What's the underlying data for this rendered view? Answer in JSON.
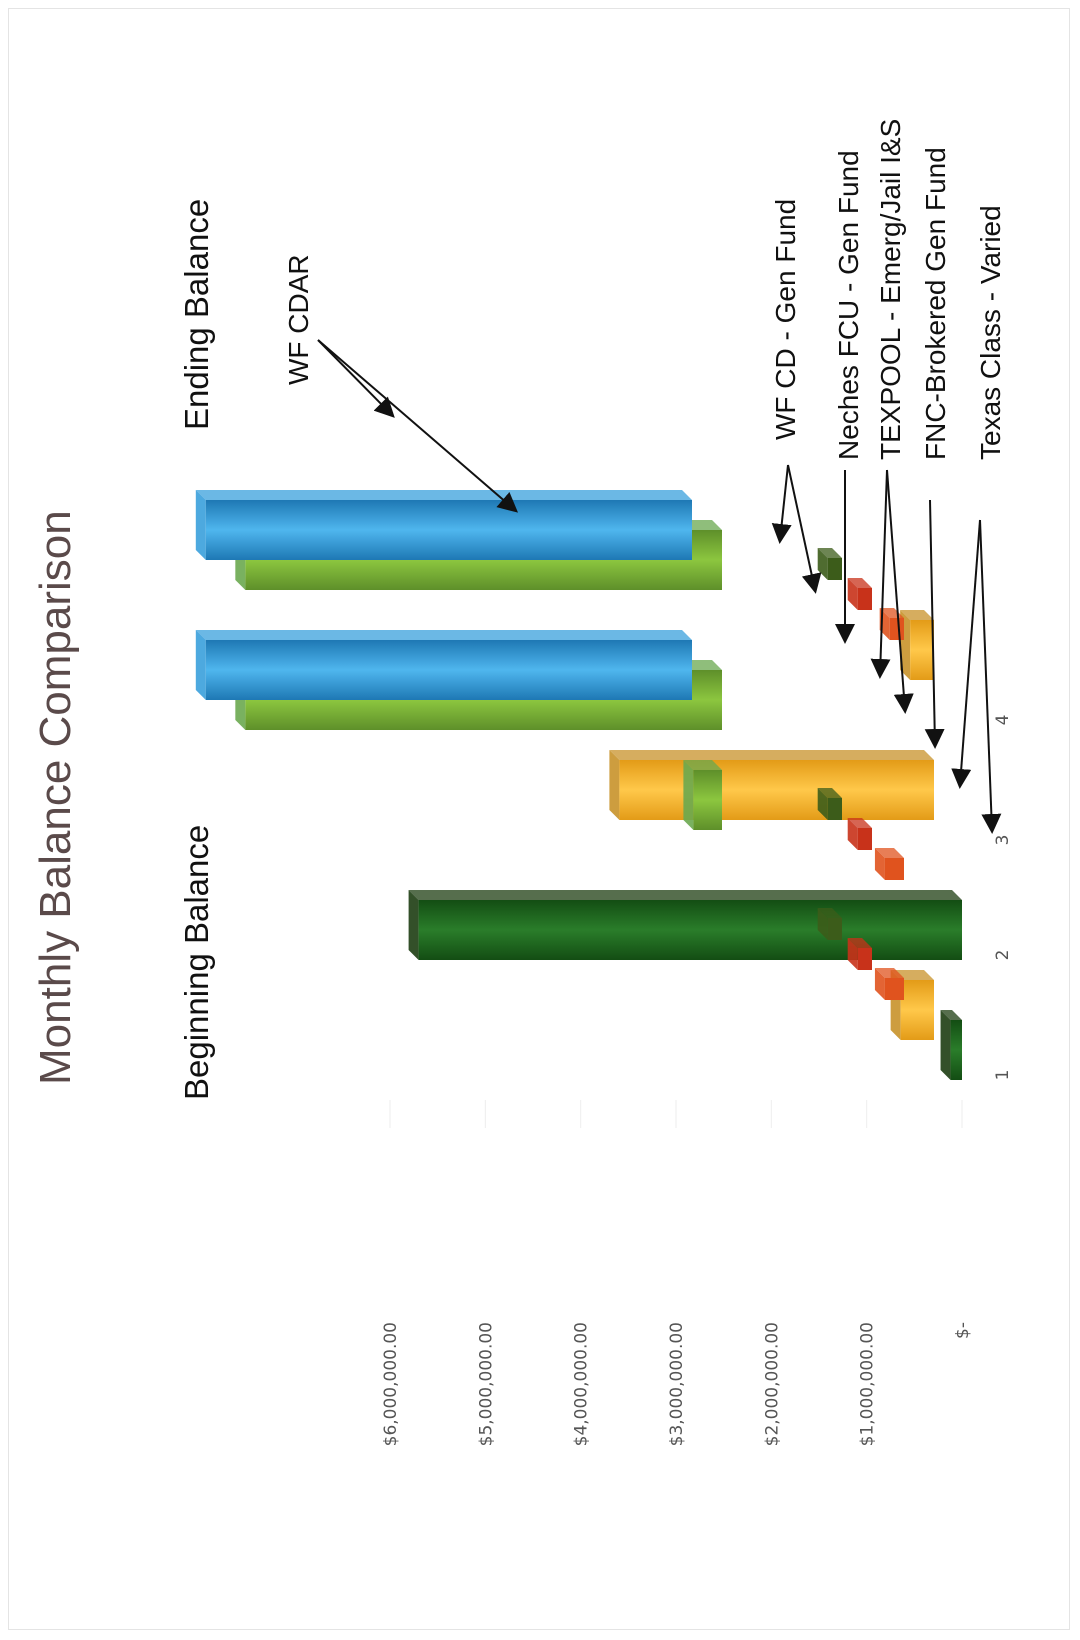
{
  "chart_data": {
    "type": "bar",
    "title": "Monthly Balance Comparison",
    "group_labels": [
      "Beginning Balance",
      "Ending Balance"
    ],
    "categories": [
      "1",
      "2",
      "3",
      "4"
    ],
    "y_ticks": [
      "$-",
      "$1,000,000.00",
      "$2,000,000.00",
      "$3,000,000.00",
      "$4,000,000.00",
      "$5,000,000.00",
      "$6,000,000.00"
    ],
    "ylim": [
      0,
      6000000
    ],
    "grid": true,
    "view": "3d",
    "series": [
      {
        "name": "Texas Class - Varied",
        "color": "#1d3d12",
        "values": [
          120000,
          5700000,
          0,
          0
        ]
      },
      {
        "name": "WF CD - Gen Fund",
        "color": "#c8922a",
        "values": [
          350000,
          0,
          3300000,
          250000
        ]
      },
      {
        "name": "FNC-Brokered Gen Fund",
        "color": "#e0531e",
        "values": [
          200000,
          200000,
          0,
          150000
        ]
      },
      {
        "name": "TEXPOOL - Emerg/Jail I&S",
        "color": "#c8321a",
        "values": [
          150000,
          150000,
          0,
          150000
        ]
      },
      {
        "name": "Neches FCU - Gen Fund",
        "color": "#3c5c1a",
        "values": [
          150000,
          150000,
          0,
          150000
        ]
      },
      {
        "name": "WF CDAR",
        "color": "#6aa84f",
        "values": [
          0,
          300000,
          5000000,
          5000000
        ]
      },
      {
        "name": "WF CDAR",
        "color": "#3aa0dc",
        "values": [
          0,
          0,
          5100000,
          5100000
        ]
      }
    ],
    "annotations": [
      "WF CDAR",
      "WF CD - Gen Fund",
      "Neches FCU - Gen Fund",
      "TEXPOOL - Emerg/Jail I&S",
      "FNC-Brokered Gen Fund",
      "Texas Class - Varied"
    ]
  }
}
